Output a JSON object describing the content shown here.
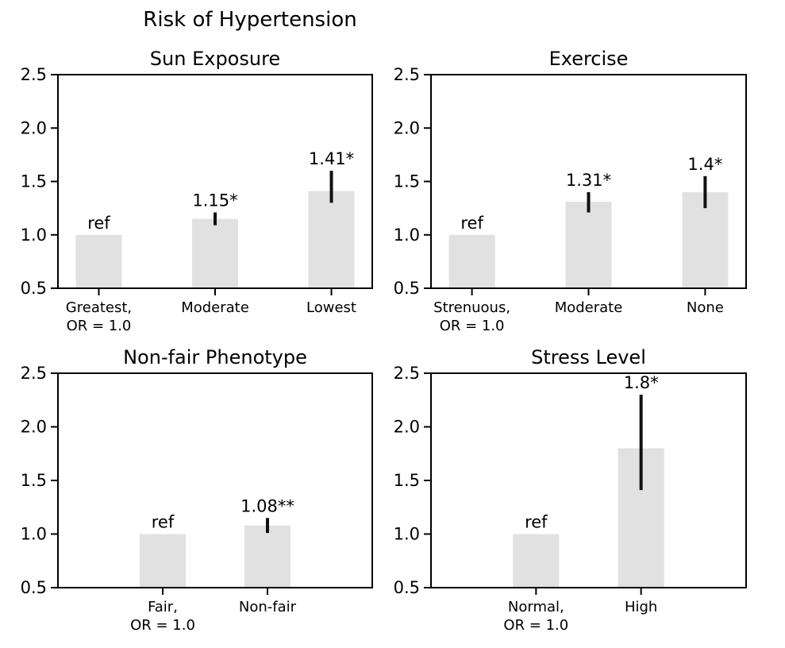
{
  "figure": {
    "title": "Risk of Hypertension",
    "background_color": "#ffffff",
    "text_color": "#000000",
    "bar_color": "#e1e1e1",
    "errorbar_color": "#111111",
    "spine_color": "#000000"
  },
  "chart_data": [
    {
      "type": "bar",
      "title": "Sun Exposure",
      "categories": [
        "Greatest,\nOR = 1.0",
        "Moderate",
        "Lowest"
      ],
      "values": [
        1.0,
        1.15,
        1.41
      ],
      "bar_labels": [
        "ref",
        "1.15*",
        "1.41*"
      ],
      "error_bars": [
        null,
        [
          1.09,
          1.21
        ],
        [
          1.3,
          1.6
        ]
      ],
      "xlabel": "",
      "ylabel": "",
      "ylim": [
        0.5,
        2.5
      ],
      "yticks": [
        0.5,
        1.0,
        1.5,
        2.0,
        2.5
      ],
      "grid": false,
      "legend": "none"
    },
    {
      "type": "bar",
      "title": "Exercise",
      "categories": [
        "Strenuous,\nOR = 1.0",
        "Moderate",
        "None"
      ],
      "values": [
        1.0,
        1.31,
        1.4
      ],
      "bar_labels": [
        "ref",
        "1.31*",
        "1.4*"
      ],
      "error_bars": [
        null,
        [
          1.21,
          1.4
        ],
        [
          1.25,
          1.55
        ]
      ],
      "xlabel": "",
      "ylabel": "",
      "ylim": [
        0.5,
        2.5
      ],
      "yticks": [
        0.5,
        1.0,
        1.5,
        2.0,
        2.5
      ],
      "grid": false,
      "legend": "none"
    },
    {
      "type": "bar",
      "title": "Non-fair Phenotype",
      "categories": [
        "Fair,\nOR = 1.0",
        "Non-fair"
      ],
      "values": [
        1.0,
        1.08
      ],
      "bar_labels": [
        "ref",
        "1.08**"
      ],
      "error_bars": [
        null,
        [
          1.01,
          1.15
        ]
      ],
      "xlabel": "",
      "ylabel": "",
      "ylim": [
        0.5,
        2.5
      ],
      "yticks": [
        0.5,
        1.0,
        1.5,
        2.0,
        2.5
      ],
      "grid": false,
      "legend": "none"
    },
    {
      "type": "bar",
      "title": "Stress Level",
      "categories": [
        "Normal,\nOR = 1.0",
        "High"
      ],
      "values": [
        1.0,
        1.8
      ],
      "bar_labels": [
        "ref",
        "1.8*"
      ],
      "error_bars": [
        null,
        [
          1.41,
          2.3
        ]
      ],
      "xlabel": "",
      "ylabel": "",
      "ylim": [
        0.5,
        2.5
      ],
      "yticks": [
        0.5,
        1.0,
        1.5,
        2.0,
        2.5
      ],
      "grid": false,
      "legend": "none"
    }
  ]
}
